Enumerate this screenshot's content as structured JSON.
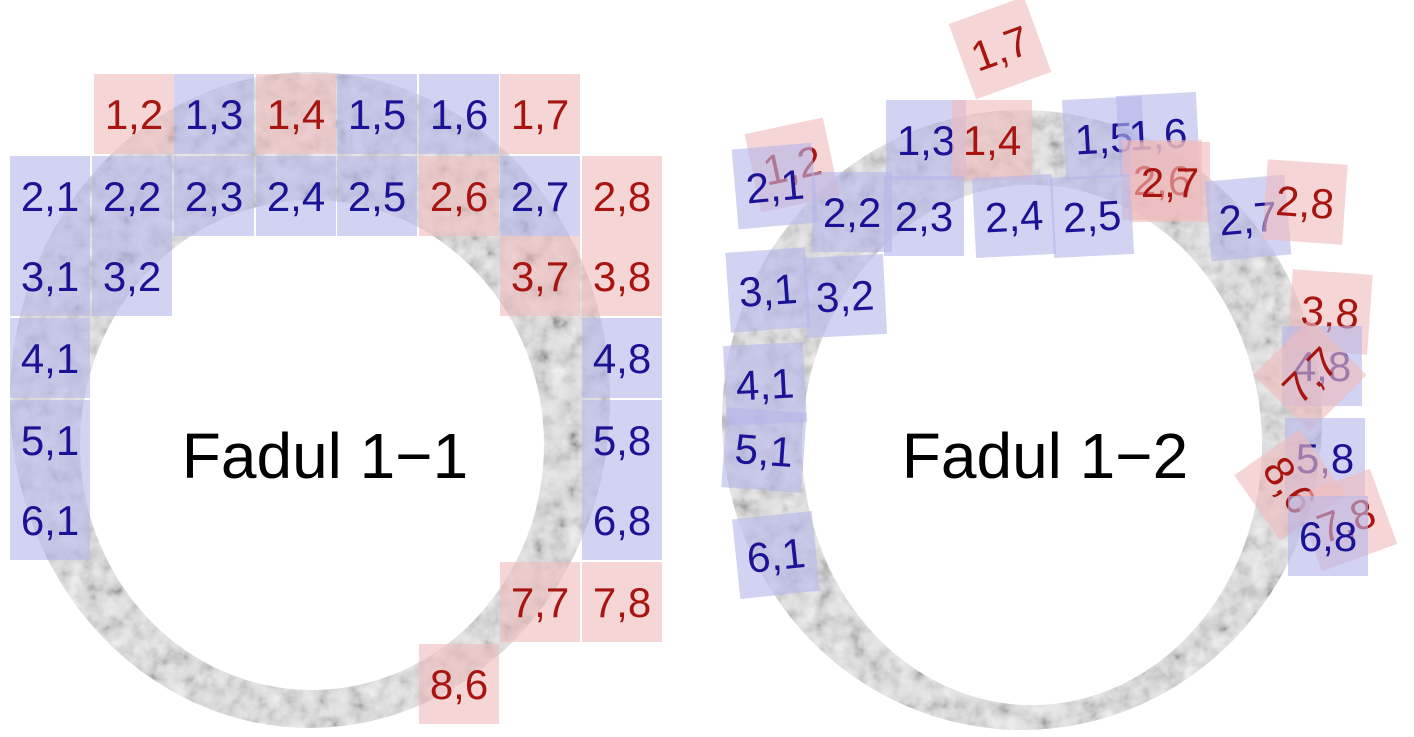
{
  "colors": {
    "blue_fill": "#b7b7ea",
    "blue_text": "#1c1296",
    "red_fill": "#efbcbc",
    "red_text": "#a8140f",
    "ring_base": "#e2e2e2",
    "ring_texture": "#6a6a6a",
    "title_text": "#000000"
  },
  "panels": [
    {
      "id": "fadul-1-1",
      "title": "Fadul 1−1",
      "tiles": [
        {
          "label": "1,2",
          "color": "red"
        },
        {
          "label": "1,3",
          "color": "blue"
        },
        {
          "label": "1,4",
          "color": "red"
        },
        {
          "label": "1,5",
          "color": "blue"
        },
        {
          "label": "1,6",
          "color": "blue"
        },
        {
          "label": "1,7",
          "color": "red"
        },
        {
          "label": "2,1",
          "color": "blue"
        },
        {
          "label": "2,2",
          "color": "blue"
        },
        {
          "label": "2,3",
          "color": "blue"
        },
        {
          "label": "2,4",
          "color": "blue"
        },
        {
          "label": "2,5",
          "color": "blue"
        },
        {
          "label": "2,6",
          "color": "red"
        },
        {
          "label": "2,7",
          "color": "blue"
        },
        {
          "label": "2,8",
          "color": "red"
        },
        {
          "label": "3,1",
          "color": "blue"
        },
        {
          "label": "3,2",
          "color": "blue"
        },
        {
          "label": "3,7",
          "color": "red"
        },
        {
          "label": "3,8",
          "color": "red"
        },
        {
          "label": "4,1",
          "color": "blue"
        },
        {
          "label": "4,8",
          "color": "blue"
        },
        {
          "label": "5,1",
          "color": "blue"
        },
        {
          "label": "5,8",
          "color": "blue"
        },
        {
          "label": "6,1",
          "color": "blue"
        },
        {
          "label": "6,8",
          "color": "blue"
        },
        {
          "label": "7,7",
          "color": "red"
        },
        {
          "label": "7,8",
          "color": "red"
        },
        {
          "label": "8,6",
          "color": "red"
        }
      ]
    },
    {
      "id": "fadul-1-2",
      "title": "Fadul 1−2",
      "tiles": [
        {
          "label": "1,7",
          "color": "red"
        },
        {
          "label": "1,2",
          "color": "red"
        },
        {
          "label": "1,3",
          "color": "blue"
        },
        {
          "label": "1,4",
          "color": "red"
        },
        {
          "label": "1,5",
          "color": "blue"
        },
        {
          "label": "1,6",
          "color": "blue"
        },
        {
          "label": "2,6",
          "color": "red"
        },
        {
          "label": "2,7",
          "color": "red"
        },
        {
          "label": "2,1",
          "color": "blue"
        },
        {
          "label": "2,2",
          "color": "blue"
        },
        {
          "label": "2,3",
          "color": "blue"
        },
        {
          "label": "2,4",
          "color": "blue"
        },
        {
          "label": "2,5",
          "color": "blue"
        },
        {
          "label": "2,7",
          "color": "blue"
        },
        {
          "label": "2,8",
          "color": "red"
        },
        {
          "label": "3,1",
          "color": "blue"
        },
        {
          "label": "3,2",
          "color": "blue"
        },
        {
          "label": "3,8",
          "color": "red"
        },
        {
          "label": "4,8",
          "color": "blue"
        },
        {
          "label": "7,7",
          "color": "red"
        },
        {
          "label": "4,1",
          "color": "blue"
        },
        {
          "label": "5,1",
          "color": "blue"
        },
        {
          "label": "5,8",
          "color": "blue"
        },
        {
          "label": "8,6",
          "color": "red"
        },
        {
          "label": "7,8",
          "color": "red"
        },
        {
          "label": "6,8",
          "color": "blue"
        },
        {
          "label": "6,1",
          "color": "blue"
        }
      ]
    }
  ]
}
